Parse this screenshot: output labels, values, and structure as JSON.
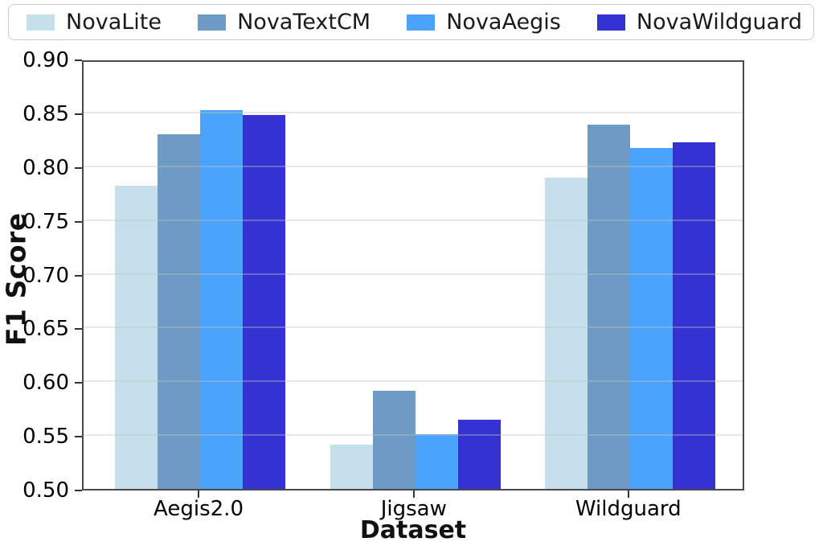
{
  "chart_data": {
    "type": "bar",
    "title": "",
    "xlabel": "Dataset",
    "ylabel": "F1 Score",
    "categories": [
      "Aegis2.0",
      "Jigsaw",
      "Wildguard"
    ],
    "series": [
      {
        "name": "NovaLite",
        "color": "#c5dfeb",
        "values": [
          0.782,
          0.541,
          0.789
        ]
      },
      {
        "name": "NovaTextCM",
        "color": "#6d9bc3",
        "values": [
          0.83,
          0.591,
          0.839
        ]
      },
      {
        "name": "NovaAegis",
        "color": "#4aa3fc",
        "values": [
          0.852,
          0.551,
          0.817
        ]
      },
      {
        "name": "NovaWildguard",
        "color": "#3432d3",
        "values": [
          0.848,
          0.564,
          0.822
        ]
      }
    ],
    "ylim": [
      0.5,
      0.9
    ],
    "ytick_values": [
      0.5,
      0.55,
      0.6,
      0.65,
      0.7,
      0.75,
      0.8,
      0.85,
      0.9
    ],
    "ytick_labels": [
      "0.50",
      "0.55",
      "0.60",
      "0.65",
      "0.70",
      "0.75",
      "0.80",
      "0.85",
      "0.90"
    ],
    "grid": true,
    "grid_axis": "y",
    "legend_position": "top",
    "bar_group_center_fractions": [
      0.176,
      0.501,
      0.825
    ]
  }
}
